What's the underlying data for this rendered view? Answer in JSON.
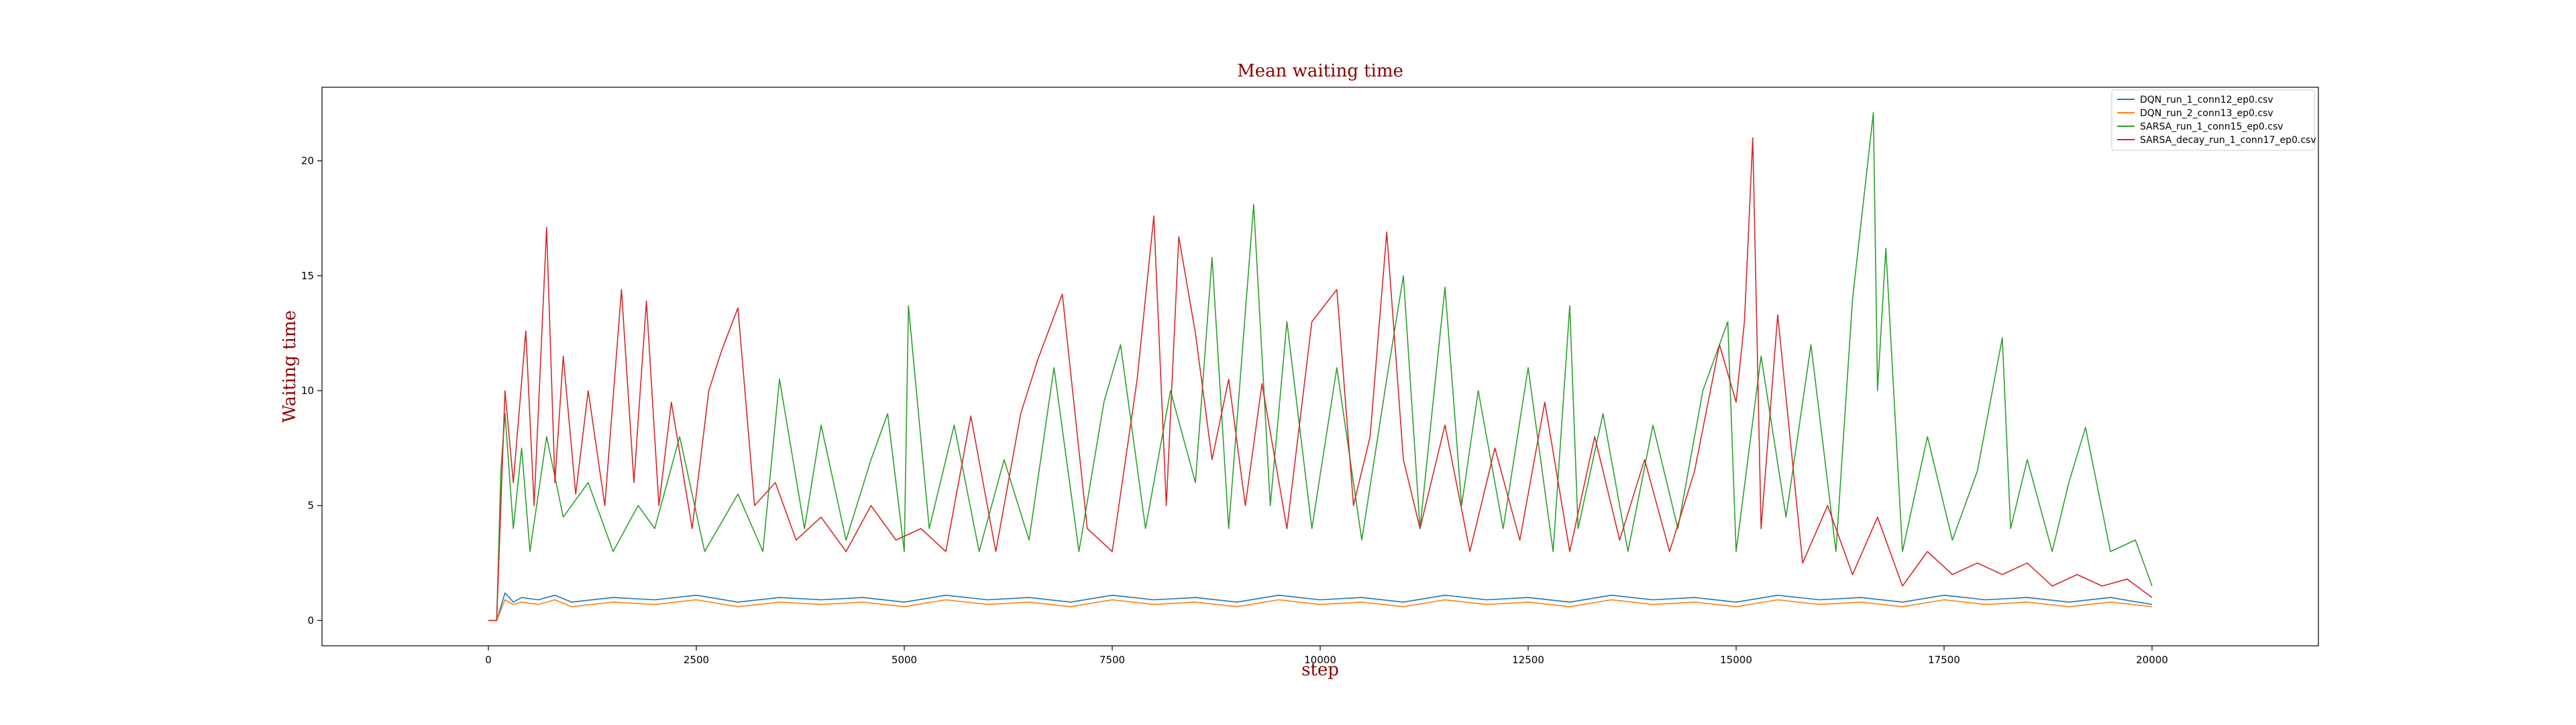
{
  "chart_data": {
    "type": "line",
    "title": "Mean waiting time",
    "xlabel": "step",
    "ylabel": "Waiting time",
    "xlim": [
      -2000,
      22000
    ],
    "ylim": [
      -1.1,
      23.2
    ],
    "xticks": [
      0,
      2500,
      5000,
      7500,
      10000,
      12500,
      15000,
      17500,
      20000
    ],
    "xtick_labels": [
      "0",
      "2500",
      "5000",
      "7500",
      "10000",
      "12500",
      "15000",
      "17500",
      "20000"
    ],
    "yticks": [
      0,
      5,
      10,
      15,
      20
    ],
    "ytick_labels": [
      "0",
      "5",
      "10",
      "15",
      "20"
    ],
    "grid": false,
    "legend_position": "top-right",
    "series": [
      {
        "name": "DQN_run_1_conn12_ep0.csv",
        "color": "#1f77b4",
        "x": [
          0,
          100,
          200,
          300,
          400,
          600,
          800,
          1000,
          1500,
          2000,
          2500,
          3000,
          3500,
          4000,
          4500,
          5000,
          5500,
          6000,
          6500,
          7000,
          7500,
          8000,
          8500,
          9000,
          9500,
          10000,
          10500,
          11000,
          11500,
          12000,
          12500,
          13000,
          13500,
          14000,
          14500,
          15000,
          15500,
          16000,
          16500,
          17000,
          17500,
          18000,
          18500,
          19000,
          19500,
          20000
        ],
        "y": [
          0,
          0,
          1.2,
          0.8,
          1.0,
          0.9,
          1.1,
          0.8,
          1.0,
          0.9,
          1.1,
          0.8,
          1.0,
          0.9,
          1.0,
          0.8,
          1.1,
          0.9,
          1.0,
          0.8,
          1.1,
          0.9,
          1.0,
          0.8,
          1.1,
          0.9,
          1.0,
          0.8,
          1.1,
          0.9,
          1.0,
          0.8,
          1.1,
          0.9,
          1.0,
          0.8,
          1.1,
          0.9,
          1.0,
          0.8,
          1.1,
          0.9,
          1.0,
          0.8,
          1.0,
          0.7
        ]
      },
      {
        "name": "DQN_run_2_conn13_ep0.csv",
        "color": "#ff7f0e",
        "x": [
          0,
          100,
          200,
          300,
          400,
          600,
          800,
          1000,
          1500,
          2000,
          2500,
          3000,
          3500,
          4000,
          4500,
          5000,
          5500,
          6000,
          6500,
          7000,
          7500,
          8000,
          8500,
          9000,
          9500,
          10000,
          10500,
          11000,
          11500,
          12000,
          12500,
          13000,
          13500,
          14000,
          14500,
          15000,
          15500,
          16000,
          16500,
          17000,
          17500,
          18000,
          18500,
          19000,
          19500,
          20000
        ],
        "y": [
          0,
          0,
          0.9,
          0.7,
          0.8,
          0.7,
          0.9,
          0.6,
          0.8,
          0.7,
          0.9,
          0.6,
          0.8,
          0.7,
          0.8,
          0.6,
          0.9,
          0.7,
          0.8,
          0.6,
          0.9,
          0.7,
          0.8,
          0.6,
          0.9,
          0.7,
          0.8,
          0.6,
          0.9,
          0.7,
          0.8,
          0.6,
          0.9,
          0.7,
          0.8,
          0.6,
          0.9,
          0.7,
          0.8,
          0.6,
          0.9,
          0.7,
          0.8,
          0.6,
          0.8,
          0.6
        ]
      },
      {
        "name": "SARSA_run_1_conn15_ep0.csv",
        "color": "#2ca02c",
        "x": [
          0,
          100,
          150,
          200,
          300,
          400,
          500,
          700,
          900,
          1200,
          1500,
          1800,
          2000,
          2300,
          2600,
          3000,
          3300,
          3500,
          3800,
          4000,
          4300,
          4600,
          4800,
          5000,
          5050,
          5300,
          5600,
          5900,
          6200,
          6500,
          6800,
          7100,
          7400,
          7600,
          7900,
          8200,
          8500,
          8700,
          8900,
          9200,
          9400,
          9600,
          9900,
          10200,
          10500,
          10800,
          11000,
          11200,
          11500,
          11700,
          11900,
          12200,
          12500,
          12800,
          13000,
          13100,
          13400,
          13700,
          14000,
          14300,
          14600,
          14900,
          15000,
          15300,
          15600,
          15900,
          16200,
          16400,
          16650,
          16700,
          16800,
          17000,
          17300,
          17600,
          17900,
          18200,
          18300,
          18500,
          18800,
          19000,
          19200,
          19500,
          19800,
          20000
        ],
        "y": [
          0,
          0,
          6.5,
          9.0,
          4.0,
          7.5,
          3.0,
          8.0,
          4.5,
          6.0,
          3.0,
          5.0,
          4.0,
          8.0,
          3.0,
          5.5,
          3.0,
          10.5,
          4.0,
          8.5,
          3.5,
          7.0,
          9.0,
          3.0,
          13.7,
          4.0,
          8.5,
          3.0,
          7.0,
          3.5,
          11.0,
          3.0,
          9.5,
          12.0,
          4.0,
          10.0,
          6.0,
          15.8,
          4.0,
          18.1,
          5.0,
          13.0,
          4.0,
          11.0,
          3.5,
          10.5,
          15.0,
          4.0,
          14.5,
          5.0,
          10.0,
          4.0,
          11.0,
          3.0,
          13.7,
          4.0,
          9.0,
          3.0,
          8.5,
          4.0,
          10.0,
          13.0,
          3.0,
          11.5,
          4.5,
          12.0,
          3.0,
          14.0,
          22.1,
          10.0,
          16.2,
          3.0,
          8.0,
          3.5,
          6.5,
          12.3,
          4.0,
          7.0,
          3.0,
          6.0,
          8.4,
          3.0,
          3.5,
          1.5
        ]
      },
      {
        "name": "SARSA_decay_run_1_conn17_ep0.csv",
        "color": "#d62728",
        "x": [
          0,
          100,
          200,
          300,
          450,
          550,
          700,
          800,
          900,
          1050,
          1200,
          1400,
          1600,
          1750,
          1900,
          2050,
          2200,
          2450,
          2650,
          2800,
          3000,
          3200,
          3450,
          3700,
          4000,
          4300,
          4600,
          4900,
          5200,
          5500,
          5800,
          6100,
          6400,
          6600,
          6900,
          7200,
          7500,
          7800,
          8000,
          8150,
          8300,
          8500,
          8700,
          8900,
          9100,
          9300,
          9600,
          9900,
          10200,
          10400,
          10600,
          10800,
          11000,
          11200,
          11500,
          11800,
          12100,
          12400,
          12700,
          13000,
          13300,
          13600,
          13900,
          14200,
          14500,
          14800,
          15000,
          15100,
          15200,
          15300,
          15500,
          15800,
          16100,
          16400,
          16700,
          17000,
          17300,
          17600,
          17900,
          18200,
          18500,
          18800,
          19100,
          19400,
          19700,
          20000
        ],
        "y": [
          0,
          0,
          10.0,
          6.0,
          12.6,
          5.0,
          17.1,
          6.0,
          11.5,
          5.5,
          10.0,
          5.0,
          14.4,
          6.0,
          13.9,
          5.0,
          9.5,
          4.0,
          10.0,
          11.7,
          13.6,
          5.0,
          6.0,
          3.5,
          4.5,
          3.0,
          5.0,
          3.5,
          4.0,
          3.0,
          8.9,
          3.0,
          9.0,
          11.3,
          14.2,
          4.0,
          3.0,
          10.5,
          17.6,
          5.0,
          16.7,
          12.5,
          7.0,
          10.5,
          5.0,
          10.3,
          4.0,
          13.0,
          14.4,
          5.0,
          8.0,
          16.9,
          7.0,
          4.0,
          8.5,
          3.0,
          7.5,
          3.5,
          9.5,
          3.0,
          8.0,
          3.5,
          7.0,
          3.0,
          6.5,
          12.0,
          9.5,
          13.0,
          21.0,
          4.0,
          13.3,
          2.5,
          5.0,
          2.0,
          4.5,
          1.5,
          3.0,
          2.0,
          2.5,
          2.0,
          2.5,
          1.5,
          2.0,
          1.5,
          1.8,
          1.0
        ]
      }
    ]
  }
}
